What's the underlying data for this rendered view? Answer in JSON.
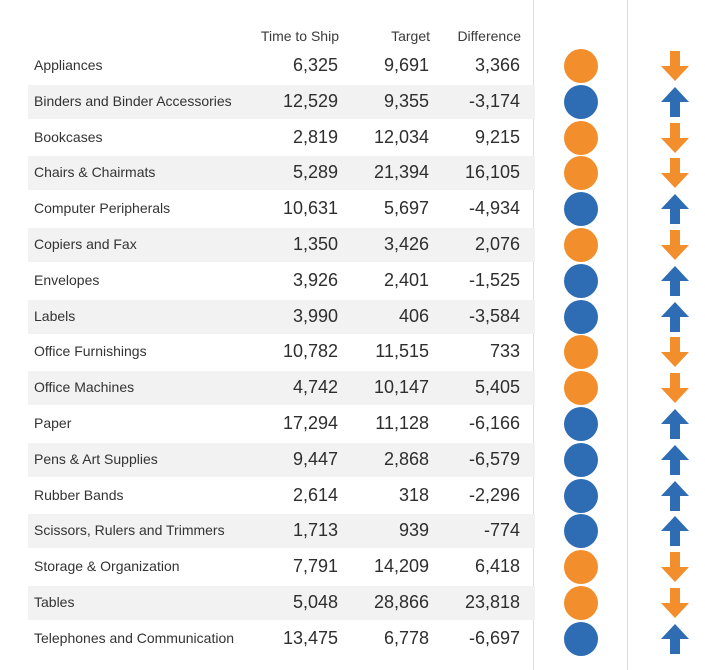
{
  "chart_data": {
    "type": "table",
    "columns": [
      "Time to Ship",
      "Target",
      "Difference"
    ],
    "colors": {
      "over": "#f28e2b",
      "under": "#2e6db4"
    },
    "rows": [
      {
        "category": "Appliances",
        "time_to_ship": "6,325",
        "target": "9,691",
        "difference": "3,366",
        "status": "over"
      },
      {
        "category": "Binders and Binder Accessories",
        "time_to_ship": "12,529",
        "target": "9,355",
        "difference": "-3,174",
        "status": "under"
      },
      {
        "category": "Bookcases",
        "time_to_ship": "2,819",
        "target": "12,034",
        "difference": "9,215",
        "status": "over"
      },
      {
        "category": "Chairs & Chairmats",
        "time_to_ship": "5,289",
        "target": "21,394",
        "difference": "16,105",
        "status": "over"
      },
      {
        "category": "Computer Peripherals",
        "time_to_ship": "10,631",
        "target": "5,697",
        "difference": "-4,934",
        "status": "under"
      },
      {
        "category": "Copiers and Fax",
        "time_to_ship": "1,350",
        "target": "3,426",
        "difference": "2,076",
        "status": "over"
      },
      {
        "category": "Envelopes",
        "time_to_ship": "3,926",
        "target": "2,401",
        "difference": "-1,525",
        "status": "under"
      },
      {
        "category": "Labels",
        "time_to_ship": "3,990",
        "target": "406",
        "difference": "-3,584",
        "status": "under"
      },
      {
        "category": "Office Furnishings",
        "time_to_ship": "10,782",
        "target": "11,515",
        "difference": "733",
        "status": "over"
      },
      {
        "category": "Office Machines",
        "time_to_ship": "4,742",
        "target": "10,147",
        "difference": "5,405",
        "status": "over"
      },
      {
        "category": "Paper",
        "time_to_ship": "17,294",
        "target": "11,128",
        "difference": "-6,166",
        "status": "under"
      },
      {
        "category": "Pens & Art Supplies",
        "time_to_ship": "9,447",
        "target": "2,868",
        "difference": "-6,579",
        "status": "under"
      },
      {
        "category": "Rubber Bands",
        "time_to_ship": "2,614",
        "target": "318",
        "difference": "-2,296",
        "status": "under"
      },
      {
        "category": "Scissors, Rulers and Trimmers",
        "time_to_ship": "1,713",
        "target": "939",
        "difference": "-774",
        "status": "under"
      },
      {
        "category": "Storage & Organization",
        "time_to_ship": "7,791",
        "target": "14,209",
        "difference": "6,418",
        "status": "over"
      },
      {
        "category": "Tables",
        "time_to_ship": "5,048",
        "target": "28,866",
        "difference": "23,818",
        "status": "over"
      },
      {
        "category": "Telephones and Communication",
        "time_to_ship": "13,475",
        "target": "6,778",
        "difference": "-6,697",
        "status": "under"
      }
    ]
  }
}
